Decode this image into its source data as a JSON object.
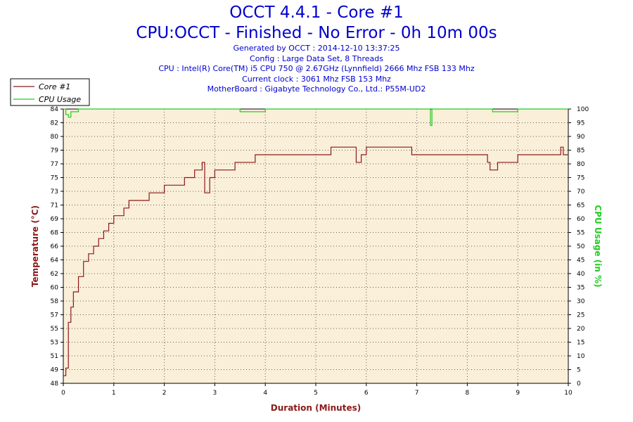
{
  "header": {
    "title": "OCCT 4.4.1 - Core #1",
    "subtitle": "CPU:OCCT - Finished - No Error - 0h 10m 00s",
    "info_lines": [
      "Generated by OCCT : 2014-12-10 13:37:25",
      "Config : Large Data Set, 8 Threads",
      "CPU : Intel(R) Core(TM) i5 CPU 750 @ 2.67GHz (Lynnfield) 2666 Mhz FSB 133 Mhz",
      "Current clock : 3061 Mhz FSB 153 Mhz",
      "MotherBoard : Gigabyte Technology Co., Ltd.: P55M-UD2"
    ]
  },
  "colors": {
    "temperature": "#8b1a1a",
    "cpu_usage": "#22cc22",
    "plot_background": "#faefd9",
    "title": "#0000cc"
  },
  "chart_data": {
    "type": "line",
    "xlabel": "Duration (Minutes)",
    "ylabel": "Temperature (°C)",
    "y2label": "CPU Usage (in %)",
    "xlim": [
      0,
      10
    ],
    "ylim": [
      48,
      84
    ],
    "y2lim": [
      0,
      100
    ],
    "grid": true,
    "legend_position": "top-left",
    "x_ticks": [
      "0",
      "1",
      "2",
      "3",
      "4",
      "5",
      "6",
      "7",
      "8",
      "9",
      "10"
    ],
    "y_ticks": [
      "48",
      "49",
      "51",
      "53",
      "55",
      "57",
      "58",
      "60",
      "62",
      "64",
      "66",
      "68",
      "69",
      "71",
      "73",
      "75",
      "77",
      "79",
      "80",
      "82",
      "84"
    ],
    "y2_ticks": [
      "0",
      "5",
      "10",
      "15",
      "20",
      "25",
      "30",
      "35",
      "40",
      "45",
      "50",
      "55",
      "60",
      "65",
      "70",
      "75",
      "80",
      "85",
      "90",
      "95",
      "100"
    ],
    "series": [
      {
        "name": "Core #1",
        "axis": "left",
        "x": [
          0,
          0.05,
          0.1,
          0.15,
          0.2,
          0.3,
          0.4,
          0.5,
          0.6,
          0.7,
          0.8,
          0.9,
          1.0,
          1.1,
          1.2,
          1.3,
          1.5,
          1.7,
          1.9,
          2.0,
          2.2,
          2.4,
          2.6,
          2.7,
          2.75,
          2.8,
          2.9,
          3.0,
          3.2,
          3.4,
          3.6,
          3.8,
          4.0,
          4.3,
          4.6,
          4.9,
          5.1,
          5.3,
          5.5,
          5.6,
          5.7,
          5.8,
          5.9,
          6.0,
          6.3,
          6.6,
          6.9,
          7.2,
          7.5,
          7.8,
          8.1,
          8.4,
          8.45,
          8.6,
          8.8,
          9.0,
          9.3,
          9.6,
          9.85,
          9.9,
          10.0
        ],
        "y": [
          49,
          50,
          56,
          58,
          60,
          62,
          64,
          65,
          66,
          67,
          68,
          69,
          70,
          70,
          71,
          72,
          72,
          73,
          73,
          74,
          74,
          75,
          76,
          76,
          77,
          73,
          75,
          76,
          76,
          77,
          77,
          78,
          78,
          78,
          78,
          78,
          78,
          79,
          79,
          79,
          79,
          77,
          78,
          79,
          79,
          79,
          78,
          78,
          78,
          78,
          78,
          77,
          76,
          77,
          77,
          78,
          78,
          78,
          79,
          78,
          78
        ]
      },
      {
        "name": "CPU Usage",
        "axis": "right",
        "x": [
          0,
          0.05,
          0.1,
          0.15,
          0.2,
          0.3,
          0.5,
          1.0,
          2.0,
          3.0,
          3.5,
          4.0,
          5.0,
          6.0,
          7.0,
          7.25,
          7.27,
          7.3,
          7.4,
          8.0,
          8.5,
          9.0,
          10.0
        ],
        "y": [
          100,
          98,
          97,
          99,
          99,
          100,
          100,
          100,
          100,
          100,
          99,
          100,
          100,
          100,
          100,
          100,
          94,
          100,
          100,
          100,
          99,
          100,
          100
        ]
      }
    ]
  }
}
